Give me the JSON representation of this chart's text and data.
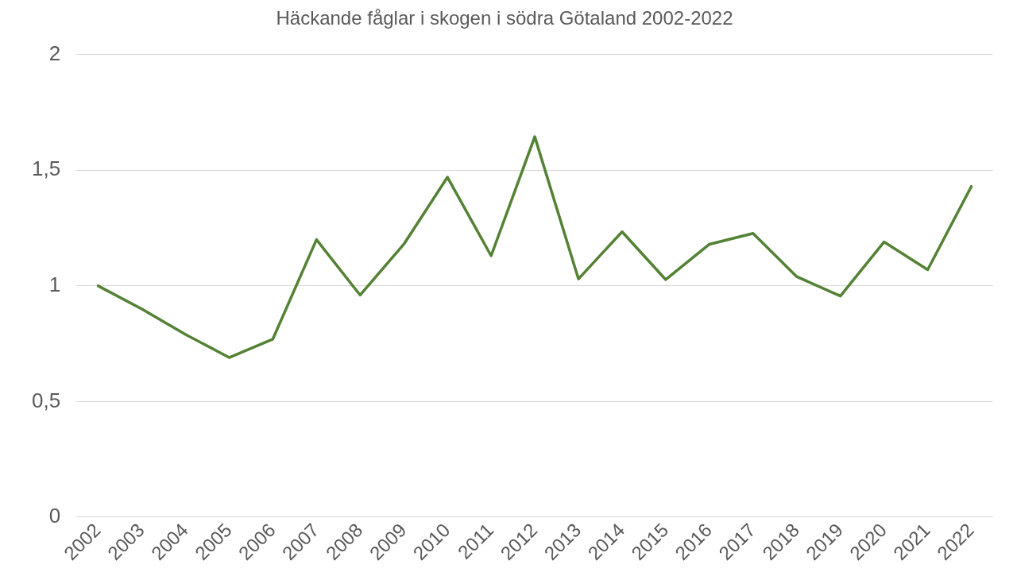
{
  "chart_data": {
    "type": "line",
    "title": "Häckande fåglar i skogen i södra Götaland 2002-2022",
    "categories": [
      "2002",
      "2003",
      "2004",
      "2005",
      "2006",
      "2007",
      "2008",
      "2009",
      "2010",
      "2011",
      "2012",
      "2013",
      "2014",
      "2015",
      "2016",
      "2017",
      "2018",
      "2019",
      "2020",
      "2021",
      "2022"
    ],
    "series": [
      {
        "color": "#548235",
        "values": [
          1.0,
          0.9,
          0.79,
          0.69,
          0.77,
          1.2,
          0.96,
          1.18,
          1.47,
          1.13,
          1.645,
          1.03,
          1.234,
          1.027,
          1.18,
          1.227,
          1.04,
          0.956,
          1.19,
          1.07,
          1.43
        ]
      }
    ],
    "ylim": [
      0,
      2
    ],
    "yticks": [
      {
        "value": 0,
        "label": "0"
      },
      {
        "value": 0.5,
        "label": "0,5"
      },
      {
        "value": 1,
        "label": "1"
      },
      {
        "value": 1.5,
        "label": "1,5"
      },
      {
        "value": 2,
        "label": "2"
      }
    ],
    "grid": "y",
    "legend": false,
    "marker": "none",
    "line_style": "solid"
  }
}
